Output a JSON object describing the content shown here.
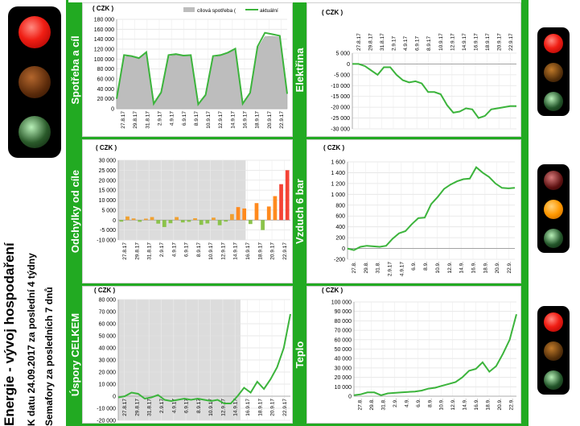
{
  "page": {
    "title": "Energie - vývoj hospodaření",
    "subtitle": "K datu 24.09.2017 za poslední 4 týdny",
    "subtitle2": "Semafory za  posledních 7 dnů"
  },
  "colors": {
    "accent_green": "#22aa22",
    "line_green": "#3cb43c",
    "shade_gray": "#d9d9d9"
  },
  "lights": [
    {
      "position": "top-left",
      "active": "red"
    },
    {
      "position": "right-1",
      "active": "red"
    },
    {
      "position": "right-2",
      "active": "amber"
    },
    {
      "position": "right-3",
      "active": "red"
    }
  ],
  "chart_data": [
    {
      "id": "spotreba",
      "type": "area",
      "band_label": "Spotřeba a cíl",
      "unit": "( CZK )",
      "xtick_labels": [
        "27.8.17",
        "29.8.17",
        "31.8.17",
        "2.9.17",
        "4.9.17",
        "6.9.17",
        "8.9.17",
        "10.9.17",
        "12.9.17",
        "14.9.17",
        "16.9.17",
        "18.9.17",
        "20.9.17",
        "22.9.17"
      ],
      "ylim": [
        0,
        180000
      ],
      "yticks": [
        0,
        20000,
        40000,
        60000,
        80000,
        100000,
        120000,
        140000,
        160000,
        180000
      ],
      "ytick_labels": [
        "0",
        "20 000",
        "40 000",
        "60 000",
        "80 000",
        "100 000",
        "120 000",
        "140 000",
        "160 000",
        "180 000"
      ],
      "legend": [
        "cílová spotřeba (",
        "aktuální"
      ],
      "legend_position": "top-right",
      "grid": true,
      "series": [
        {
          "name": "cílová spotřeba (",
          "kind": "area",
          "values": [
            20000,
            104000,
            106000,
            100000,
            113000,
            8000,
            30000,
            105000,
            108000,
            106000,
            107000,
            10000,
            25000,
            103000,
            106000,
            112000,
            118000,
            12000,
            30000,
            120000,
            145000,
            146000,
            144000,
            28000
          ]
        },
        {
          "name": "aktuální",
          "kind": "line",
          "values": [
            20000,
            108000,
            106000,
            102000,
            114000,
            10000,
            33000,
            108000,
            110000,
            107000,
            108000,
            9000,
            28000,
            106000,
            108000,
            113000,
            121000,
            10000,
            32000,
            125000,
            153000,
            150000,
            147000,
            30000
          ]
        }
      ]
    },
    {
      "id": "elektrina",
      "type": "line",
      "band_label": "Elektřina",
      "unit": "( CZK )",
      "xtick_labels": [
        "27.8.17",
        "29.8.17",
        "31.8.17",
        "2.9.17",
        "4.9.17",
        "6.9.17",
        "8.9.17",
        "10.9.17",
        "12.9.17",
        "14.9.17",
        "16.9.17",
        "18.9.17",
        "20.9.17",
        "22.9.17"
      ],
      "ylim": [
        -30000,
        5000
      ],
      "yticks": [
        -30000,
        -25000,
        -20000,
        -15000,
        -10000,
        -5000,
        0,
        5000
      ],
      "ytick_labels": [
        "-30 000",
        "-25 000",
        "-20 000",
        "-15 000",
        "-10 000",
        "-5 000",
        "0",
        "5 000"
      ],
      "grid": true,
      "series": [
        {
          "values": [
            0,
            0,
            -1000,
            -3000,
            -5000,
            -1500,
            -1500,
            -5000,
            -7500,
            -8500,
            -8000,
            -9000,
            -13000,
            -13000,
            -14000,
            -19000,
            -22500,
            -22000,
            -20500,
            -21000,
            -25000,
            -24000,
            -21000,
            -20500,
            -20000,
            -19500,
            -19500
          ]
        }
      ]
    },
    {
      "id": "odchylky",
      "type": "bar",
      "band_label": "Odchylky od cíle",
      "unit": "( CZK )",
      "xtick_labels": [
        "27.8.17",
        "29.8.17",
        "31.8.17",
        "2.9.17",
        "4.9.17",
        "6.9.17",
        "8.9.17",
        "10.9.17",
        "12.9.17",
        "14.9.17",
        "16.9.17",
        "18.9.17",
        "20.9.17",
        "22.9.17"
      ],
      "ylim": [
        -10000,
        30000
      ],
      "yticks": [
        -10000,
        -5000,
        0,
        5000,
        10000,
        15000,
        20000,
        25000,
        30000
      ],
      "ytick_labels": [
        "-10 000",
        "-5 000",
        "0",
        "5 000",
        "10 000",
        "15 000",
        "20 000",
        "25 000",
        "30 000"
      ],
      "grid": true,
      "series": [
        {
          "values": [
            -800,
            1800,
            800,
            -900,
            700,
            1500,
            -1800,
            -3500,
            -1600,
            1500,
            -1200,
            -900,
            900,
            -2400,
            -1700,
            1200,
            -2600,
            -800,
            3000,
            6500,
            5800,
            -2000,
            8500,
            -5000,
            6800,
            12000,
            18000,
            25000
          ]
        }
      ]
    },
    {
      "id": "vzduch",
      "type": "line",
      "band_label": "Vzduch 6 bar",
      "unit": "( CZK )",
      "xtick_labels": [
        "27.8.",
        "29.8.",
        "31.8.",
        "2.9.17",
        "4.9.17",
        "6.9.",
        "8.9.",
        "10.9.",
        "12.9.",
        "14.9.",
        "16.9.",
        "18.9.",
        "20.9.",
        "22.9."
      ],
      "ylim": [
        -200,
        1600
      ],
      "yticks": [
        -200,
        0,
        200,
        400,
        600,
        800,
        1000,
        1200,
        1400,
        1600
      ],
      "ytick_labels": [
        "-200",
        "0",
        "200",
        "400",
        "600",
        "800",
        "1 000",
        "1 200",
        "1 400",
        "1 600"
      ],
      "grid": true,
      "series": [
        {
          "values": [
            0,
            -30,
            30,
            50,
            40,
            30,
            50,
            180,
            280,
            320,
            450,
            560,
            570,
            820,
            950,
            1100,
            1180,
            1240,
            1280,
            1290,
            1500,
            1400,
            1320,
            1200,
            1120,
            1110,
            1120
          ]
        }
      ]
    },
    {
      "id": "uspory",
      "type": "line",
      "band_label": "Úspory CELKEM",
      "unit": "( CZK )",
      "xtick_labels": [
        "27.8.17",
        "29.8.17",
        "31.8.17",
        "2.9.17",
        "4.9.17",
        "6.9.17",
        "8.9.17",
        "10.9.17",
        "12.9.17",
        "14.9.17",
        "16.9.17",
        "18.9.17",
        "20.9.17",
        "22.9.17"
      ],
      "ylim": [
        -20000,
        80000
      ],
      "yticks": [
        -20000,
        -10000,
        0,
        10000,
        20000,
        30000,
        40000,
        50000,
        60000,
        70000,
        80000
      ],
      "ytick_labels": [
        "-20 000",
        "-10 000",
        "0",
        "10 000",
        "20 000",
        "30 000",
        "40 000",
        "50 000",
        "60 000",
        "70 000",
        "80 000"
      ],
      "grid": true,
      "series": [
        {
          "values": [
            -1000,
            0,
            3000,
            2000,
            -2000,
            -1000,
            1000,
            -3000,
            -4000,
            -3000,
            -2000,
            -3000,
            -2000,
            -3000,
            -4000,
            -3000,
            -6000,
            -6000,
            0,
            7000,
            3000,
            12000,
            6000,
            14000,
            24000,
            40000,
            68000
          ]
        }
      ]
    },
    {
      "id": "teplo",
      "type": "line",
      "band_label": "Teplo",
      "unit": "( CZK )",
      "xtick_labels": [
        "27.8.",
        "29.8.",
        "31.8.",
        "2.9.",
        "4.9.",
        "6.9.",
        "8.9.",
        "10.9.",
        "12.9.",
        "14.9.",
        "16.9.",
        "18.9.",
        "20.9.",
        "22.9."
      ],
      "ylim": [
        0,
        100000
      ],
      "yticks": [
        0,
        10000,
        20000,
        30000,
        40000,
        50000,
        60000,
        70000,
        80000,
        90000,
        100000
      ],
      "ytick_labels": [
        "0",
        "10 000",
        "20 000",
        "30 000",
        "40 000",
        "50 000",
        "60 000",
        "70 000",
        "80 000",
        "90 000",
        "100 000"
      ],
      "grid": true,
      "series": [
        {
          "values": [
            1000,
            2000,
            4000,
            4000,
            1000,
            3000,
            3500,
            4000,
            4500,
            5000,
            6000,
            8000,
            9000,
            11000,
            13000,
            15000,
            20000,
            27000,
            29000,
            36000,
            26000,
            32000,
            45000,
            60000,
            87000
          ]
        }
      ]
    }
  ]
}
